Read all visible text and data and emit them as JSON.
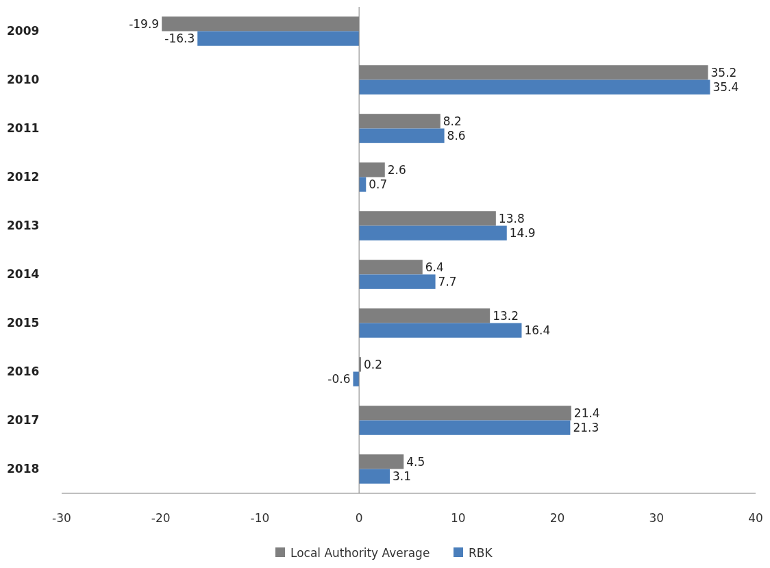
{
  "chart_data": {
    "type": "bar",
    "orientation": "horizontal",
    "categories": [
      "2009",
      "2010",
      "2011",
      "2012",
      "2013",
      "2014",
      "2015",
      "2016",
      "2017",
      "2018"
    ],
    "series": [
      {
        "name": "Local Authority Average",
        "color": "#7f7f7f",
        "values": [
          -19.9,
          35.2,
          8.2,
          2.6,
          13.8,
          6.4,
          13.2,
          0.2,
          21.4,
          4.5
        ]
      },
      {
        "name": "RBK",
        "color": "#4a7ebb",
        "values": [
          -16.3,
          35.4,
          8.6,
          0.7,
          14.9,
          7.7,
          16.4,
          -0.6,
          21.3,
          3.1
        ]
      }
    ],
    "xlim": [
      -30,
      40
    ],
    "xticks": [
      -30,
      -20,
      -10,
      0,
      10,
      20,
      30,
      40
    ],
    "data_labels": true,
    "legend": "bottom"
  }
}
